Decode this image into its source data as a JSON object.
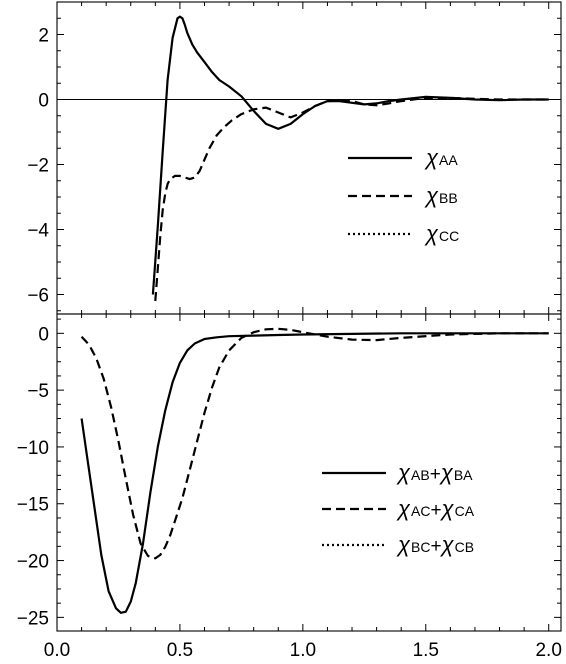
{
  "chart_data": [
    {
      "type": "line",
      "title": "",
      "xlabel": "",
      "ylabel": "",
      "xlim": [
        0.0,
        2.05
      ],
      "ylim": [
        -6.6,
        3.0
      ],
      "grid": false,
      "legend_position": "center-right",
      "zero_line": true,
      "yticks": [
        2,
        0,
        -2,
        -4,
        -6
      ],
      "ytick_labels": [
        "2",
        "0",
        "−2",
        "−4",
        "−6"
      ],
      "series": [
        {
          "name": "χAA",
          "label_parts": [
            {
              "main": "χ",
              "sub": "AA"
            }
          ],
          "style": "solid",
          "x": [
            0.39,
            0.41,
            0.43,
            0.45,
            0.47,
            0.49,
            0.5,
            0.51,
            0.52,
            0.53,
            0.55,
            0.57,
            0.6,
            0.63,
            0.66,
            0.7,
            0.75,
            0.8,
            0.85,
            0.9,
            0.95,
            1.0,
            1.05,
            1.1,
            1.15,
            1.2,
            1.25,
            1.3,
            1.35,
            1.4,
            1.5,
            1.6,
            1.7,
            1.8,
            1.9,
            2.0
          ],
          "y": [
            -6.0,
            -3.9,
            -1.6,
            0.6,
            1.9,
            2.5,
            2.55,
            2.5,
            2.3,
            2.05,
            1.7,
            1.45,
            1.15,
            0.85,
            0.6,
            0.4,
            0.1,
            -0.35,
            -0.75,
            -0.9,
            -0.75,
            -0.45,
            -0.2,
            -0.05,
            -0.05,
            -0.1,
            -0.15,
            -0.12,
            -0.05,
            0.0,
            0.08,
            0.05,
            0.0,
            -0.02,
            0.0,
            0.0
          ]
        },
        {
          "name": "χBB",
          "label_parts": [
            {
              "main": "χ",
              "sub": "BB"
            }
          ],
          "style": "dashed",
          "x": [
            0.4,
            0.41,
            0.42,
            0.43,
            0.44,
            0.45,
            0.46,
            0.48,
            0.5,
            0.52,
            0.54,
            0.56,
            0.58,
            0.6,
            0.62,
            0.65,
            0.68,
            0.71,
            0.75,
            0.8,
            0.85,
            0.9,
            0.95,
            1.0,
            1.05,
            1.1,
            1.15,
            1.2,
            1.25,
            1.3,
            1.35,
            1.4,
            1.5,
            1.6,
            1.7,
            1.8,
            1.9,
            2.0
          ],
          "y": [
            -6.2,
            -5.2,
            -4.2,
            -3.4,
            -2.9,
            -2.6,
            -2.45,
            -2.35,
            -2.35,
            -2.4,
            -2.45,
            -2.4,
            -2.2,
            -1.85,
            -1.5,
            -1.1,
            -0.85,
            -0.65,
            -0.45,
            -0.3,
            -0.25,
            -0.4,
            -0.55,
            -0.4,
            -0.2,
            -0.05,
            -0.02,
            -0.05,
            -0.15,
            -0.18,
            -0.12,
            -0.05,
            0.05,
            0.05,
            0.02,
            0.0,
            0.0,
            0.0
          ]
        },
        {
          "name": "χCC",
          "label_parts": [
            {
              "main": "χ",
              "sub": "CC"
            }
          ],
          "style": "dotted",
          "x": [],
          "y": []
        }
      ]
    },
    {
      "type": "line",
      "title": "",
      "xlabel": "",
      "ylabel": "",
      "xlim": [
        0.0,
        2.05
      ],
      "ylim": [
        -26.2,
        1.7
      ],
      "grid": false,
      "legend_position": "center-right",
      "yticks": [
        0,
        -5,
        -10,
        -15,
        -20,
        -25
      ],
      "ytick_labels": [
        "0",
        "−5",
        "−10",
        "−15",
        "−20",
        "−25"
      ],
      "xticks": [
        0.0,
        0.5,
        1.0,
        1.5,
        2.0
      ],
      "xtick_labels": [
        "0.0",
        "0.5",
        "1.0",
        "1.5",
        "2.0"
      ],
      "series": [
        {
          "name": "χAB+χBA",
          "label_parts": [
            {
              "main": "χ",
              "sub": "AB"
            },
            {
              "plus": "+"
            },
            {
              "main": "χ",
              "sub": "BA"
            }
          ],
          "style": "solid",
          "x": [
            0.1,
            0.12,
            0.15,
            0.18,
            0.21,
            0.24,
            0.26,
            0.28,
            0.3,
            0.32,
            0.35,
            0.38,
            0.41,
            0.44,
            0.47,
            0.5,
            0.53,
            0.56,
            0.6,
            0.65,
            0.7,
            0.8,
            0.9,
            1.0,
            1.2,
            1.4,
            1.6,
            1.8,
            2.0
          ],
          "y": [
            -7.5,
            -10.5,
            -15.0,
            -19.5,
            -22.7,
            -24.2,
            -24.6,
            -24.5,
            -23.6,
            -22.0,
            -18.5,
            -14.0,
            -10.0,
            -6.8,
            -4.3,
            -2.6,
            -1.5,
            -0.9,
            -0.5,
            -0.35,
            -0.25,
            -0.2,
            -0.15,
            -0.1,
            -0.05,
            0.0,
            0.0,
            0.0,
            0.0
          ]
        },
        {
          "name": "χAC+χCA",
          "label_parts": [
            {
              "main": "χ",
              "sub": "AC"
            },
            {
              "plus": "+"
            },
            {
              "main": "χ",
              "sub": "CA"
            }
          ],
          "style": "dashed",
          "x": [
            0.1,
            0.13,
            0.16,
            0.19,
            0.22,
            0.25,
            0.28,
            0.31,
            0.34,
            0.37,
            0.4,
            0.42,
            0.44,
            0.46,
            0.48,
            0.51,
            0.54,
            0.57,
            0.6,
            0.63,
            0.66,
            0.7,
            0.75,
            0.8,
            0.85,
            0.9,
            0.95,
            1.0,
            1.1,
            1.2,
            1.3,
            1.4,
            1.6,
            1.8,
            2.0
          ],
          "y": [
            -0.3,
            -1.0,
            -2.2,
            -4.0,
            -6.5,
            -9.5,
            -12.8,
            -16.0,
            -18.5,
            -19.6,
            -19.8,
            -19.5,
            -18.8,
            -17.8,
            -16.5,
            -14.5,
            -12.0,
            -9.5,
            -7.0,
            -4.8,
            -3.0,
            -1.5,
            -0.4,
            0.1,
            0.35,
            0.4,
            0.3,
            0.1,
            -0.3,
            -0.55,
            -0.6,
            -0.4,
            -0.1,
            0.0,
            0.0
          ]
        },
        {
          "name": "χBC+χCB",
          "label_parts": [
            {
              "main": "χ",
              "sub": "BC"
            },
            {
              "plus": "+"
            },
            {
              "main": "χ",
              "sub": "CB"
            }
          ],
          "style": "dotted",
          "x": [],
          "y": []
        }
      ]
    }
  ]
}
